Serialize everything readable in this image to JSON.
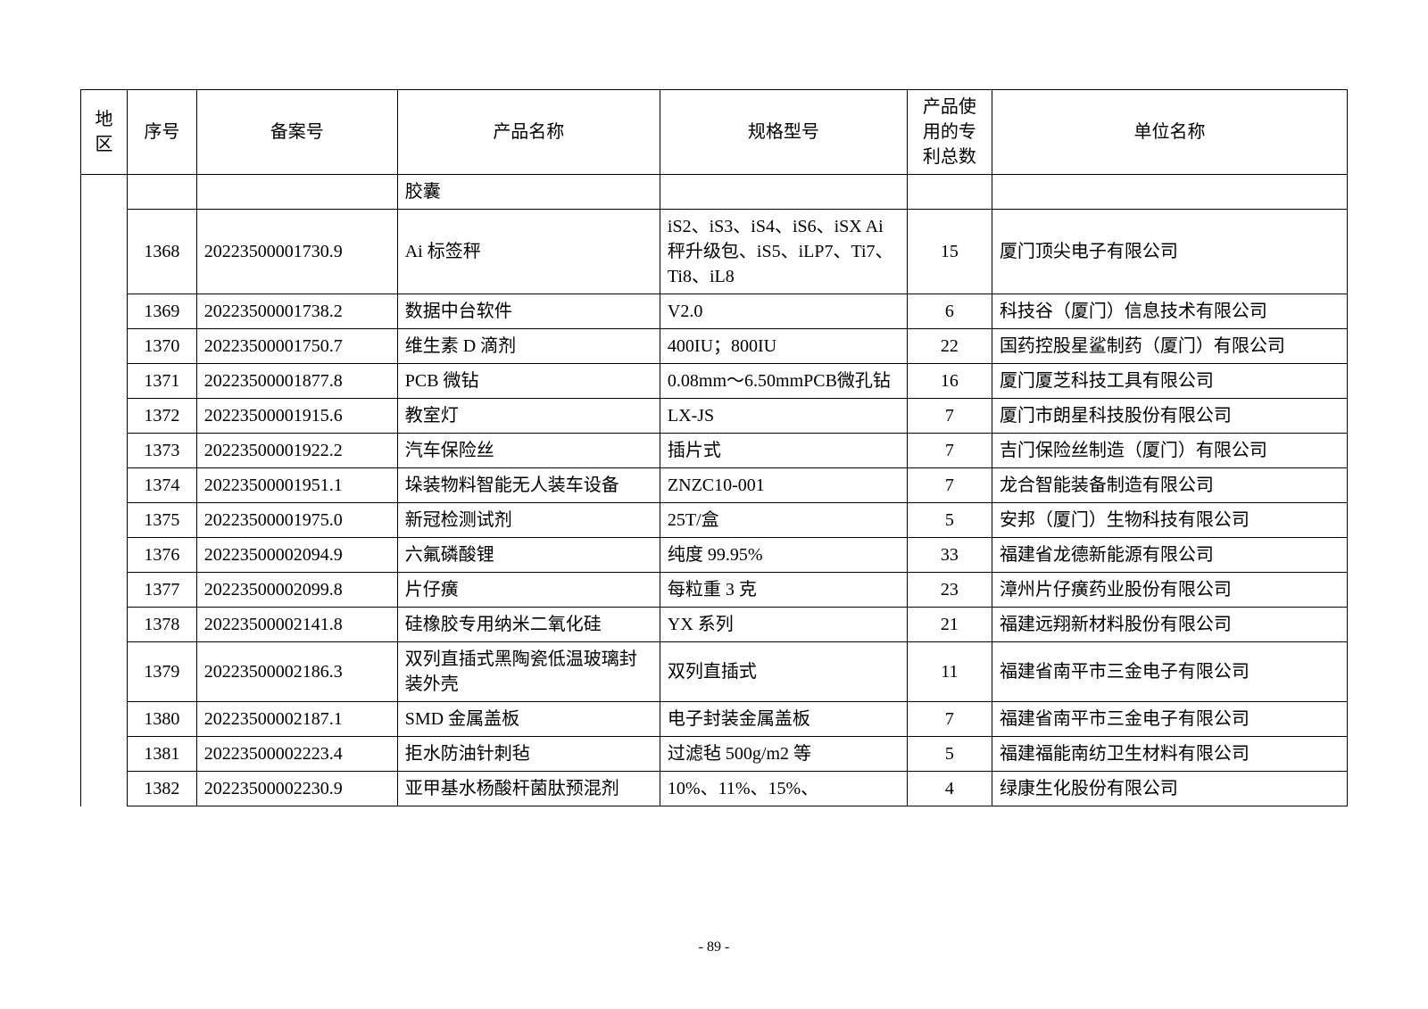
{
  "table": {
    "headers": {
      "region": "地区",
      "seq": "序号",
      "filing": "备案号",
      "product": "产品名称",
      "spec": "规格型号",
      "patents": "产品使用的专利总数",
      "company": "单位名称"
    },
    "partial_row": {
      "product": "胶囊"
    },
    "rows": [
      {
        "seq": "1368",
        "filing": "20223500001730.9",
        "product": "Ai 标签秤",
        "spec": "iS2、iS3、iS4、iS6、iSX Ai 秤升级包、iS5、iLP7、Ti7、Ti8、iL8",
        "patents": "15",
        "company": "厦门顶尖电子有限公司"
      },
      {
        "seq": "1369",
        "filing": "20223500001738.2",
        "product": "数据中台软件",
        "spec": "V2.0",
        "patents": "6",
        "company": "科技谷（厦门）信息技术有限公司"
      },
      {
        "seq": "1370",
        "filing": "20223500001750.7",
        "product": "维生素 D 滴剂",
        "spec": "400IU；800IU",
        "patents": "22",
        "company": "国药控股星鲨制药（厦门）有限公司"
      },
      {
        "seq": "1371",
        "filing": "20223500001877.8",
        "product": "PCB 微钻",
        "spec": "0.08mm～6.50mmPCB微孔钻",
        "patents": "16",
        "company": "厦门厦芝科技工具有限公司"
      },
      {
        "seq": "1372",
        "filing": "20223500001915.6",
        "product": "教室灯",
        "spec": "LX-JS",
        "patents": "7",
        "company": "厦门市朗星科技股份有限公司"
      },
      {
        "seq": "1373",
        "filing": "20223500001922.2",
        "product": "汽车保险丝",
        "spec": "插片式",
        "patents": "7",
        "company": "吉门保险丝制造（厦门）有限公司"
      },
      {
        "seq": "1374",
        "filing": "20223500001951.1",
        "product": "垛装物料智能无人装车设备",
        "spec": "ZNZC10-001",
        "patents": "7",
        "company": "龙合智能装备制造有限公司"
      },
      {
        "seq": "1375",
        "filing": "20223500001975.0",
        "product": "新冠检测试剂",
        "spec": "25T/盒",
        "patents": "5",
        "company": "安邦（厦门）生物科技有限公司"
      },
      {
        "seq": "1376",
        "filing": "20223500002094.9",
        "product": "六氟磷酸锂",
        "spec": "纯度 99.95%",
        "patents": "33",
        "company": "福建省龙德新能源有限公司"
      },
      {
        "seq": "1377",
        "filing": "20223500002099.8",
        "product": "片仔癀",
        "spec": "每粒重 3 克",
        "patents": "23",
        "company": "漳州片仔癀药业股份有限公司"
      },
      {
        "seq": "1378",
        "filing": "20223500002141.8",
        "product": "硅橡胶专用纳米二氧化硅",
        "spec": "YX 系列",
        "patents": "21",
        "company": "福建远翔新材料股份有限公司"
      },
      {
        "seq": "1379",
        "filing": "20223500002186.3",
        "product": "双列直插式黑陶瓷低温玻璃封装外壳",
        "spec": "双列直插式",
        "patents": "11",
        "company": "福建省南平市三金电子有限公司"
      },
      {
        "seq": "1380",
        "filing": "20223500002187.1",
        "product": "SMD 金属盖板",
        "spec": "电子封装金属盖板",
        "patents": "7",
        "company": "福建省南平市三金电子有限公司"
      },
      {
        "seq": "1381",
        "filing": "20223500002223.4",
        "product": "拒水防油针刺毡",
        "spec": "过滤毡 500g/m2 等",
        "patents": "5",
        "company": "福建福能南纺卫生材料有限公司"
      },
      {
        "seq": "1382",
        "filing": "20223500002230.9",
        "product": "亚甲基水杨酸杆菌肽预混剂",
        "spec": "10%、11%、15%、",
        "patents": "4",
        "company": "绿康生化股份有限公司"
      }
    ]
  },
  "page_number": "- 89 -"
}
